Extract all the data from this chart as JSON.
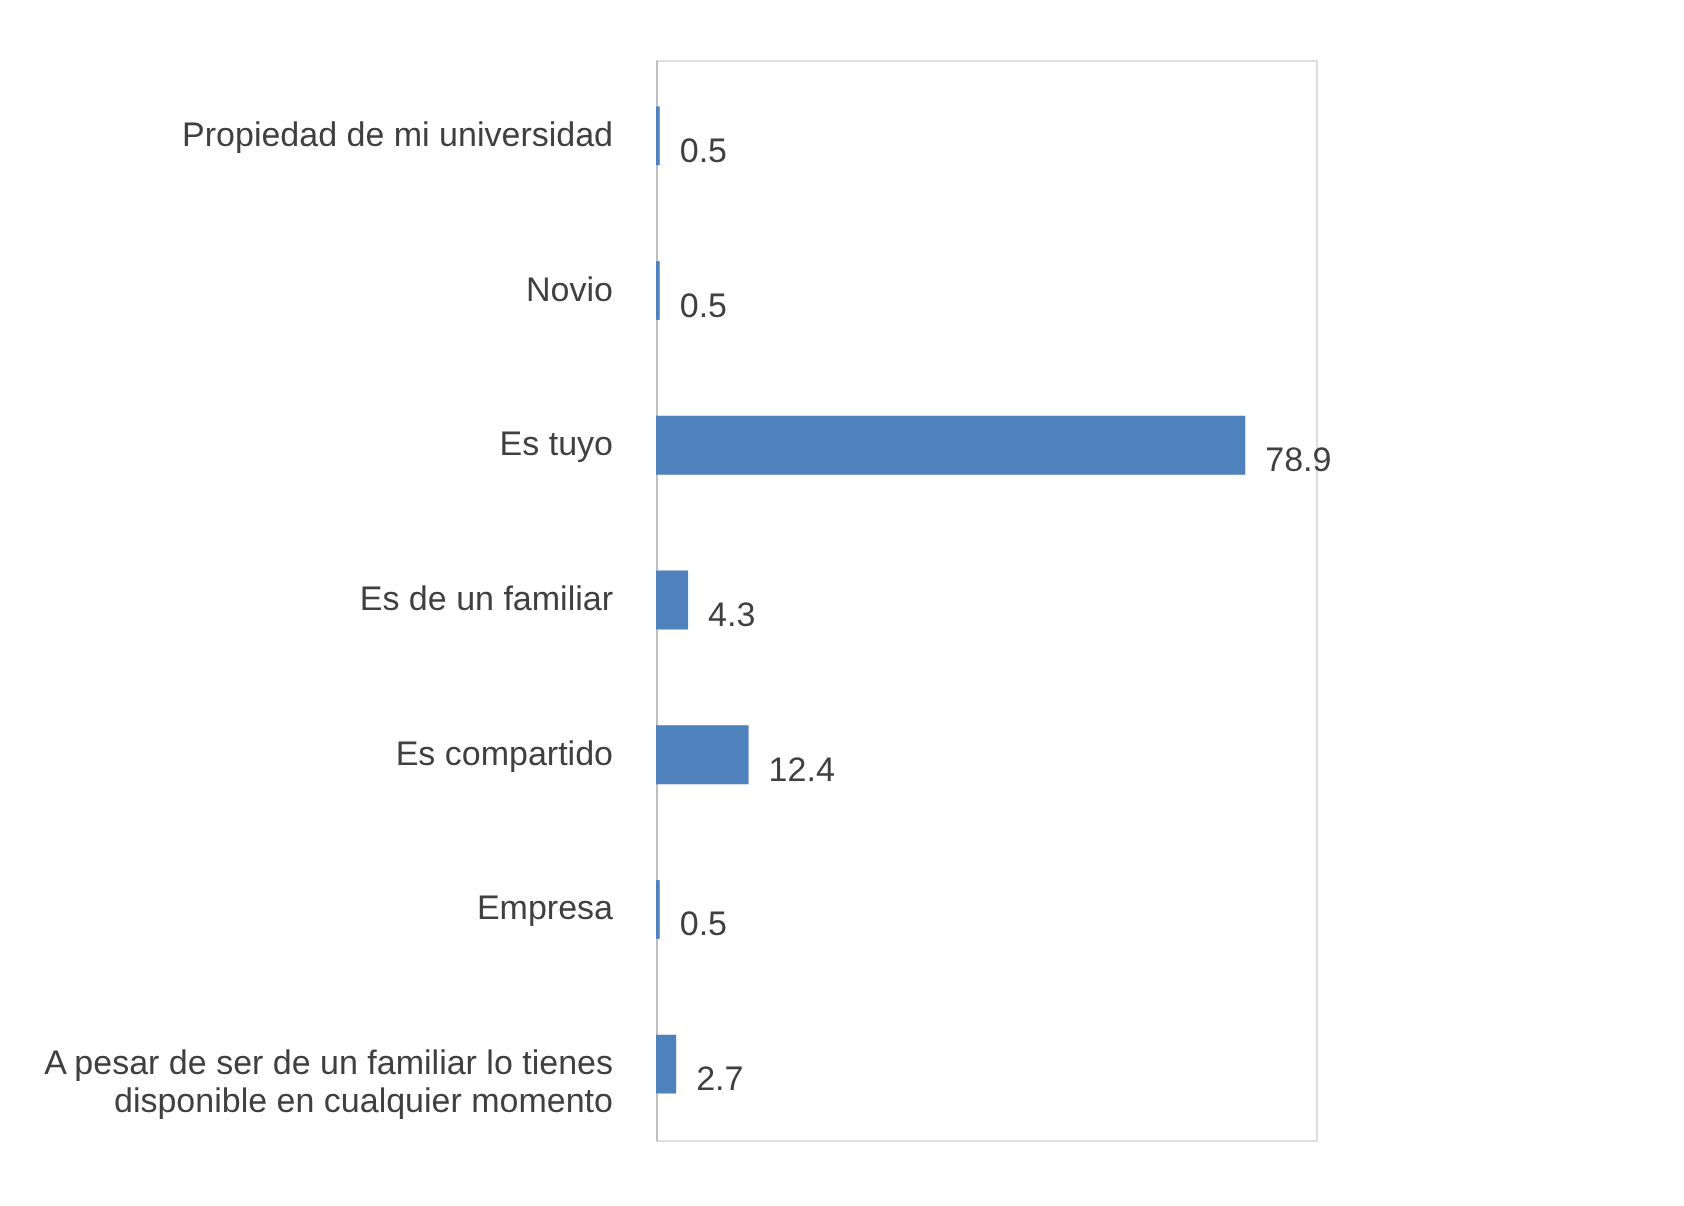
{
  "chart_data": {
    "type": "bar",
    "orientation": "horizontal",
    "categories": [
      "Propiedad de mi universidad",
      "Novio",
      "Es tuyo",
      "Es de un familiar",
      "Es compartido",
      "Empresa",
      "A pesar de ser de un familiar lo tienes disponible en cualquier momento"
    ],
    "values": [
      0.5,
      0.5,
      78.9,
      4.3,
      12.4,
      0.5,
      2.7
    ],
    "color": "#4f81bd",
    "data_labels": true
  }
}
